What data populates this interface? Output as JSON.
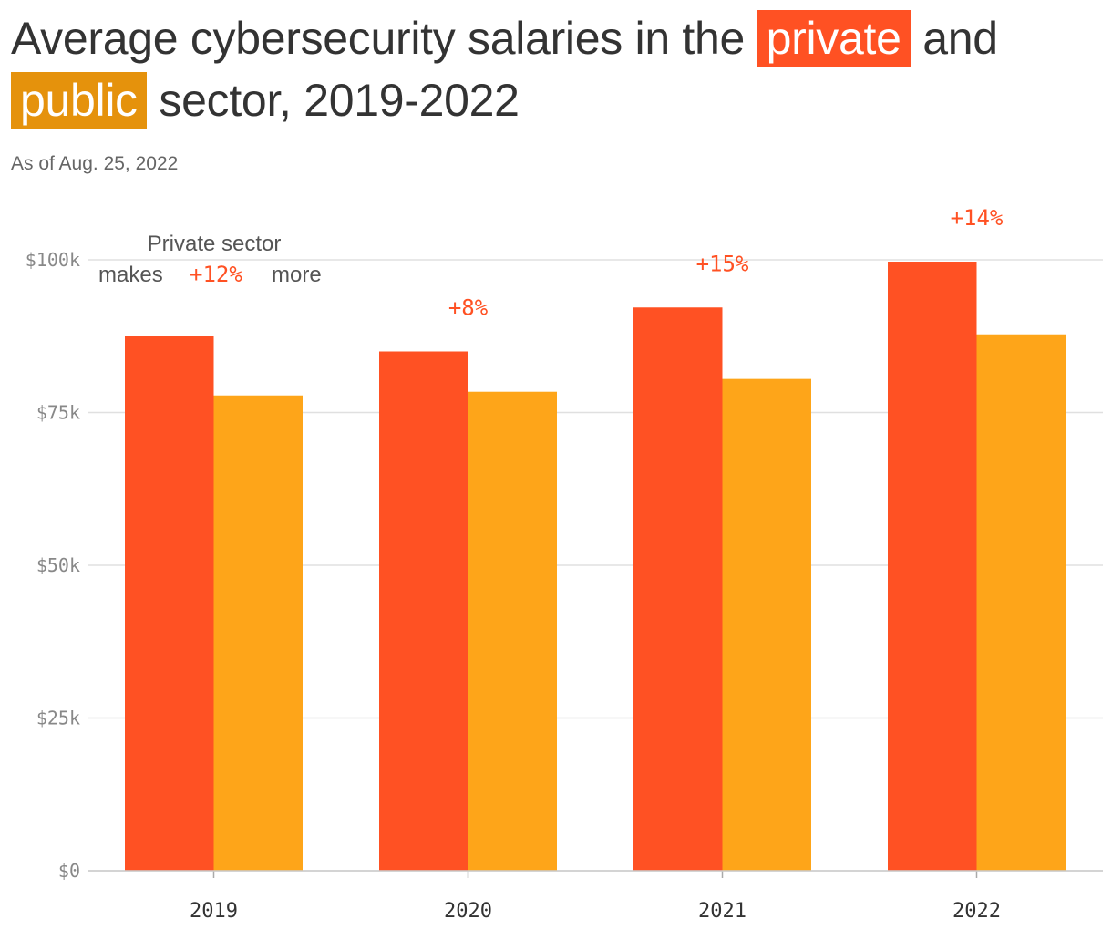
{
  "title": {
    "before": "Average cybersecurity salaries in the ",
    "private": "private",
    "middle": " and",
    "public": "public",
    "after": " sector, 2019-2022"
  },
  "subtitle": "As of Aug. 25, 2022",
  "colors": {
    "private": "#ff5123",
    "public": "#fea519",
    "public_highlight": "#e5920c",
    "grid": "#e0e0e0"
  },
  "chart_data": {
    "type": "bar",
    "categories": [
      "2019",
      "2020",
      "2021",
      "2022"
    ],
    "series": [
      {
        "name": "private",
        "values": [
          87500,
          85000,
          92200,
          99700
        ]
      },
      {
        "name": "public",
        "values": [
          77800,
          78400,
          80500,
          87800
        ]
      }
    ],
    "difference_labels": [
      "+12%",
      "+8%",
      "+15%",
      "+14%"
    ],
    "y_ticks": [
      {
        "value": 0,
        "label": "$0"
      },
      {
        "value": 25000,
        "label": "$25k"
      },
      {
        "value": 50000,
        "label": "$50k"
      },
      {
        "value": 75000,
        "label": "$75k"
      },
      {
        "value": 100000,
        "label": "$100k"
      }
    ],
    "ylim": [
      0,
      100000
    ],
    "grid": true,
    "annotation": {
      "line1": "Private sector",
      "line2_before": "makes",
      "line2_value": "+12%",
      "line2_after": "more"
    }
  }
}
